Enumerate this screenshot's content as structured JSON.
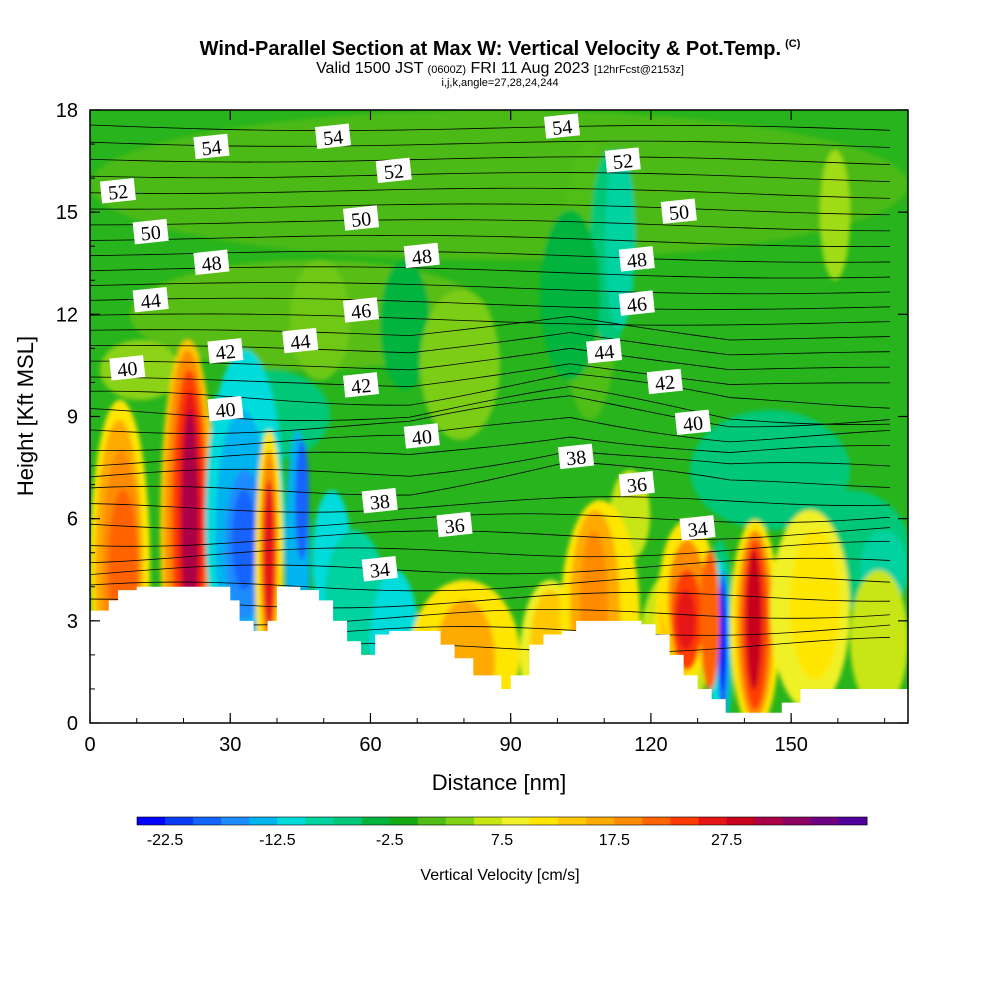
{
  "header": {
    "title": "Wind-Parallel Section at Max W: Vertical Velocity & Pot.Temp.",
    "copyright": "(C)",
    "valid_prefix": "Valid 1500 JST",
    "valid_utc": "(0600Z)",
    "valid_date": "FRI 11 Aug 2023",
    "forecast": "[12hrFcst@2153z]",
    "indices": "i,j,k,angle=27,28,24,244"
  },
  "chart_data": {
    "type": "heatmap",
    "xlabel": "Distance [nm]",
    "ylabel": "Height [Kft MSL]",
    "xlim": [
      0,
      175
    ],
    "ylim": [
      0,
      18
    ],
    "xticks": [
      0,
      30,
      60,
      90,
      120,
      150
    ],
    "yticks": [
      0,
      3,
      6,
      9,
      12,
      15,
      18
    ],
    "colorbar": {
      "label": "Vertical Velocity [cm/s]",
      "tick_labels": [
        "-22.5",
        "-12.5",
        "-2.5",
        "7.5",
        "17.5",
        "27.5"
      ],
      "colors": [
        "#0000ff",
        "#0a3cf5",
        "#1464ff",
        "#1e8cff",
        "#00b4f0",
        "#00dcdc",
        "#00d2a0",
        "#00c878",
        "#00b43c",
        "#14aa14",
        "#50be14",
        "#82d214",
        "#c8e614",
        "#f0f028",
        "#ffe600",
        "#ffc800",
        "#ffaa00",
        "#ff8c00",
        "#ff6400",
        "#ff3c00",
        "#e61414",
        "#c8001e",
        "#aa0046",
        "#8c0064",
        "#6e0082",
        "#50009b"
      ]
    },
    "terrain_profile": {
      "x": [
        0,
        4,
        6,
        10,
        30,
        32,
        35,
        38,
        40,
        45,
        49,
        52,
        55,
        58,
        61,
        64,
        75,
        78,
        82,
        88,
        90,
        94,
        97,
        101,
        104,
        118,
        121,
        124,
        127,
        130,
        133,
        136,
        140,
        145,
        148,
        152,
        170,
        175
      ],
      "height": [
        3.3,
        3.6,
        3.9,
        4.0,
        3.6,
        3.0,
        2.7,
        3.0,
        4.0,
        3.9,
        3.6,
        3.0,
        2.4,
        2.0,
        2.6,
        2.7,
        2.3,
        1.9,
        1.4,
        1.0,
        1.4,
        2.3,
        2.6,
        2.7,
        3.0,
        2.9,
        2.6,
        2.0,
        1.4,
        1.0,
        0.7,
        0.3,
        0.3,
        0.3,
        0.6,
        1.0,
        1.0,
        1.0
      ]
    },
    "theta_contour_labels": [
      {
        "text": "54",
        "x": 26,
        "y": 16.9
      },
      {
        "text": "54",
        "x": 52,
        "y": 17.2
      },
      {
        "text": "54",
        "x": 101,
        "y": 17.5
      },
      {
        "text": "52",
        "x": 6,
        "y": 15.6
      },
      {
        "text": "52",
        "x": 65,
        "y": 16.2
      },
      {
        "text": "52",
        "x": 114,
        "y": 16.5
      },
      {
        "text": "50",
        "x": 13,
        "y": 14.4
      },
      {
        "text": "50",
        "x": 58,
        "y": 14.8
      },
      {
        "text": "50",
        "x": 126,
        "y": 15.0
      },
      {
        "text": "48",
        "x": 26,
        "y": 13.5
      },
      {
        "text": "48",
        "x": 71,
        "y": 13.7
      },
      {
        "text": "48",
        "x": 117,
        "y": 13.6
      },
      {
        "text": "44",
        "x": 13,
        "y": 12.4
      },
      {
        "text": "46",
        "x": 58,
        "y": 12.1
      },
      {
        "text": "46",
        "x": 117,
        "y": 12.3
      },
      {
        "text": "44",
        "x": 45,
        "y": 11.2
      },
      {
        "text": "44",
        "x": 110,
        "y": 10.9
      },
      {
        "text": "40",
        "x": 8,
        "y": 10.4
      },
      {
        "text": "42",
        "x": 29,
        "y": 10.9
      },
      {
        "text": "42",
        "x": 58,
        "y": 9.9
      },
      {
        "text": "42",
        "x": 123,
        "y": 10.0
      },
      {
        "text": "40",
        "x": 29,
        "y": 9.2
      },
      {
        "text": "40",
        "x": 71,
        "y": 8.4
      },
      {
        "text": "40",
        "x": 129,
        "y": 8.8
      },
      {
        "text": "38",
        "x": 104,
        "y": 7.8
      },
      {
        "text": "38",
        "x": 62,
        "y": 6.5
      },
      {
        "text": "36",
        "x": 117,
        "y": 7.0
      },
      {
        "text": "36",
        "x": 78,
        "y": 5.8
      },
      {
        "text": "34",
        "x": 130,
        "y": 5.7
      },
      {
        "text": "34",
        "x": 62,
        "y": 4.5
      }
    ]
  }
}
